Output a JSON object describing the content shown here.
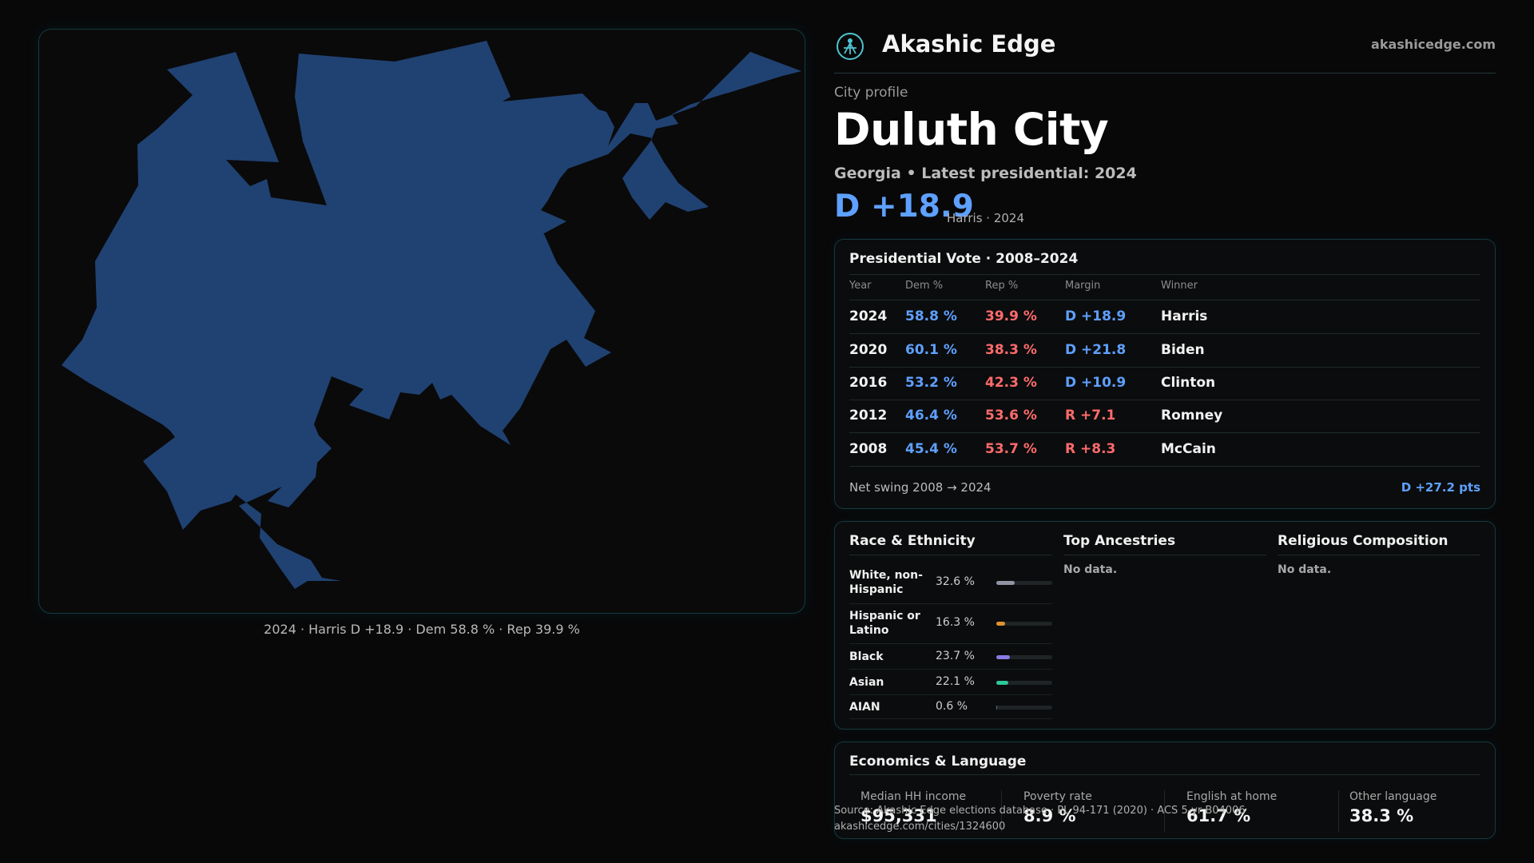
{
  "map": {
    "caption": "2024 · Harris D +18.9 · Dem 58.8 % · Rep 39.9 %",
    "fill_color": "#204272"
  },
  "header": {
    "brand": "Akashic Edge",
    "site": "akashicedge.com",
    "logo_icon": "akashic-edge-logo-icon"
  },
  "profile": {
    "eyebrow": "City profile",
    "city": "Duluth City",
    "subline": "Georgia • Latest presidential: 2024",
    "margin": "D +18.9",
    "margin_note": "Harris · 2024"
  },
  "vote": {
    "title": "Presidential Vote · 2008–2024",
    "columns": [
      "Year",
      "Dem %",
      "Rep %",
      "Margin",
      "Winner"
    ],
    "rows": [
      {
        "year": "2024",
        "dem": "58.8 %",
        "rep": "39.9 %",
        "margin": "D +18.9",
        "winner": "Harris",
        "party": "dem"
      },
      {
        "year": "2020",
        "dem": "60.1 %",
        "rep": "38.3 %",
        "margin": "D +21.8",
        "winner": "Biden",
        "party": "dem"
      },
      {
        "year": "2016",
        "dem": "53.2 %",
        "rep": "42.3 %",
        "margin": "D +10.9",
        "winner": "Clinton",
        "party": "dem"
      },
      {
        "year": "2012",
        "dem": "46.4 %",
        "rep": "53.6 %",
        "margin": "R +7.1",
        "winner": "Romney",
        "party": "rep"
      },
      {
        "year": "2008",
        "dem": "45.4 %",
        "rep": "53.7 %",
        "margin": "R +8.3",
        "winner": "McCain",
        "party": "rep"
      }
    ],
    "swing_label": "Net swing 2008 → 2024",
    "swing_value": "D +27.2 pts"
  },
  "demographics": {
    "race_title": "Race & Ethnicity",
    "race": [
      {
        "label": "White, non-Hispanic",
        "pct": "32.6 %",
        "value": 0.326,
        "color": "#8f95a3"
      },
      {
        "label": "Hispanic or Latino",
        "pct": "16.3 %",
        "value": 0.163,
        "color": "#e0922e"
      },
      {
        "label": "Black",
        "pct": "23.7 %",
        "value": 0.237,
        "color": "#8a7be0"
      },
      {
        "label": "Asian",
        "pct": "22.1 %",
        "value": 0.221,
        "color": "#2ec79a"
      },
      {
        "label": "AIAN",
        "pct": "0.6 %",
        "value": 0.006,
        "color": "#6b6b6b"
      }
    ],
    "ancestry_title": "Top Ancestries",
    "ancestry_empty": "No data.",
    "religion_title": "Religious Composition",
    "religion_empty": "No data."
  },
  "economics": {
    "title": "Economics & Language",
    "stats": [
      {
        "label": "Median HH income",
        "value": "$95,331"
      },
      {
        "label": "Poverty rate",
        "value": "8.9 %"
      },
      {
        "label": "English at home",
        "value": "61.7 %"
      },
      {
        "label": "Other language",
        "value": "38.3 %"
      }
    ]
  },
  "footer": {
    "source": "Source: Akashic Edge elections database · PL 94-171 (2020) · ACS 5-yr B04006",
    "url": "akashicedge.com/cities/1324600"
  }
}
